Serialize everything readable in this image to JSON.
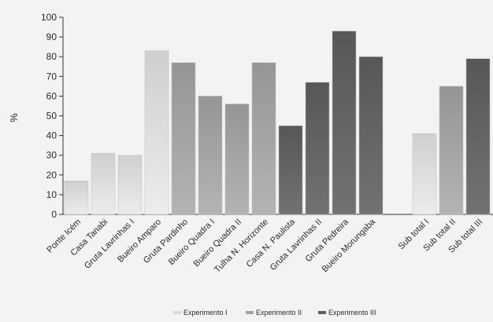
{
  "chart_data": {
    "type": "bar",
    "ylabel": "%",
    "ylim": [
      0,
      100
    ],
    "yticks": [
      0,
      10,
      20,
      30,
      40,
      50,
      60,
      70,
      80,
      90,
      100
    ],
    "grid": false,
    "legend_position": "bottom",
    "categories": [
      "Ponte Icém",
      "Casa Tanabi",
      "Gruta Lavrinhas I",
      "Bueiro Amparo",
      "Gruta Pardinho",
      "Bueiro Quadra I",
      "Bueiro Quadra II",
      "Tulha N. Horizonte",
      "Casa N. Paulista",
      "Gruta Lavrinhas II",
      "Gruta Pedreira",
      "Bueiro Morungaba",
      "Sub total I",
      "Sub total II",
      "Sub total III"
    ],
    "values": [
      17,
      31,
      30,
      83,
      77,
      60,
      56,
      77,
      45,
      67,
      93,
      80,
      41,
      65,
      79
    ],
    "groups": [
      {
        "name": "Experimento I",
        "color": "#dadada",
        "categories": [
          "Ponte Icém",
          "Casa Tanabi",
          "Gruta Lavrinhas I",
          "Bueiro Amparo",
          "Sub total I"
        ]
      },
      {
        "name": "Experimento II",
        "color": "#a3a3a3",
        "categories": [
          "Gruta Pardinho",
          "Bueiro Quadra I",
          "Bueiro Quadra II",
          "Tulha N. Horizonte",
          "Sub total II"
        ]
      },
      {
        "name": "Experimento III",
        "color": "#5f5f5f",
        "categories": [
          "Casa N. Paulista",
          "Gruta Lavrinhas II",
          "Gruta Pedreira",
          "Bueiro Morungaba",
          "Sub total III"
        ]
      }
    ],
    "legend": [
      "Experimento I",
      "Experimento II",
      "Experimento III"
    ]
  }
}
